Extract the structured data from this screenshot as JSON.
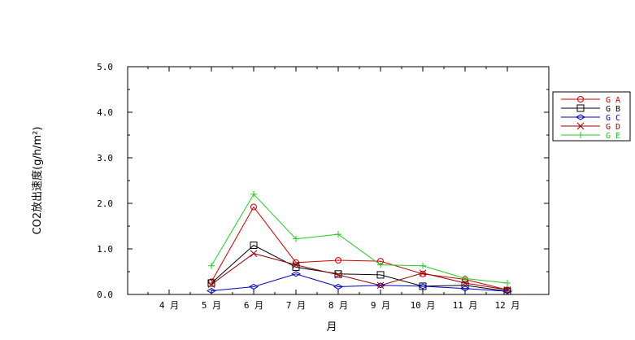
{
  "chart_data": {
    "type": "line",
    "title": "",
    "xlabel": "月",
    "ylabel": "CO2放出速度(g/h/m²)",
    "categories": [
      "4 月",
      "5 月",
      "6 月",
      "7 月",
      "8 月",
      "9 月",
      "10 月",
      "11 月",
      "12 月"
    ],
    "yticks": [
      "0.0",
      "1.0",
      "2.0",
      "3.0",
      "4.0",
      "5.0"
    ],
    "ylim": [
      0,
      5
    ],
    "grid": false,
    "legend_position": "right",
    "series": [
      {
        "name": "G A",
        "color": "#cc0000",
        "marker": "circle",
        "values": [
          null,
          0.28,
          1.92,
          0.7,
          0.75,
          0.73,
          0.45,
          0.33,
          0.1
        ]
      },
      {
        "name": "G B",
        "color": "#000000",
        "marker": "square",
        "values": [
          null,
          0.25,
          1.08,
          0.6,
          0.45,
          0.43,
          0.18,
          0.2,
          0.07
        ]
      },
      {
        "name": "G C",
        "color": "#0000cc",
        "marker": "diamond",
        "values": [
          null,
          0.08,
          0.17,
          0.45,
          0.17,
          0.2,
          0.18,
          0.13,
          0.07
        ]
      },
      {
        "name": "G D",
        "color": "#990000",
        "marker": "x",
        "values": [
          null,
          0.22,
          0.9,
          0.65,
          0.43,
          0.2,
          0.47,
          0.25,
          0.1
        ]
      },
      {
        "name": "G E",
        "color": "#22cc22",
        "marker": "plus",
        "values": [
          null,
          0.63,
          2.2,
          1.22,
          1.32,
          0.65,
          0.63,
          0.35,
          0.25
        ]
      }
    ]
  }
}
